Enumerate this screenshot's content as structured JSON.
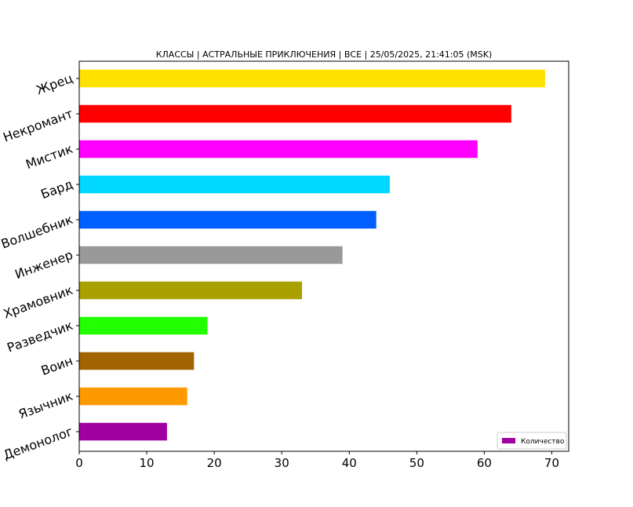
{
  "chart_data": {
    "type": "bar",
    "orientation": "horizontal",
    "title": "КЛАССЫ | АСТРАЛЬНЫЕ ПРИКЛЮЧЕНИЯ | ВСЕ | 25/05/2025, 21:41:05 (MSK)",
    "xlabel": "",
    "ylabel": "",
    "categories": [
      "Демонолог",
      "Язычник",
      "Воин",
      "Разведчик",
      "Храмовник",
      "Инженер",
      "Волшебник",
      "Бард",
      "Мистик",
      "Некромант",
      "Жрец"
    ],
    "series": [
      {
        "name": "Количество",
        "values": [
          13,
          16,
          17,
          19,
          33,
          39,
          44,
          46,
          59,
          64,
          69
        ],
        "colors": [
          "#a0009f",
          "#ff9900",
          "#a06400",
          "#22ff00",
          "#aaa000",
          "#999999",
          "#0060ff",
          "#00d8ff",
          "#ff00ff",
          "#ff0000",
          "#ffe100"
        ]
      }
    ],
    "xlim": [
      0,
      72.5
    ],
    "xticks": [
      0,
      10,
      20,
      30,
      40,
      50,
      60,
      70
    ],
    "grid": false,
    "legend_position": "lower-right",
    "legend_color": "#a0009f"
  }
}
